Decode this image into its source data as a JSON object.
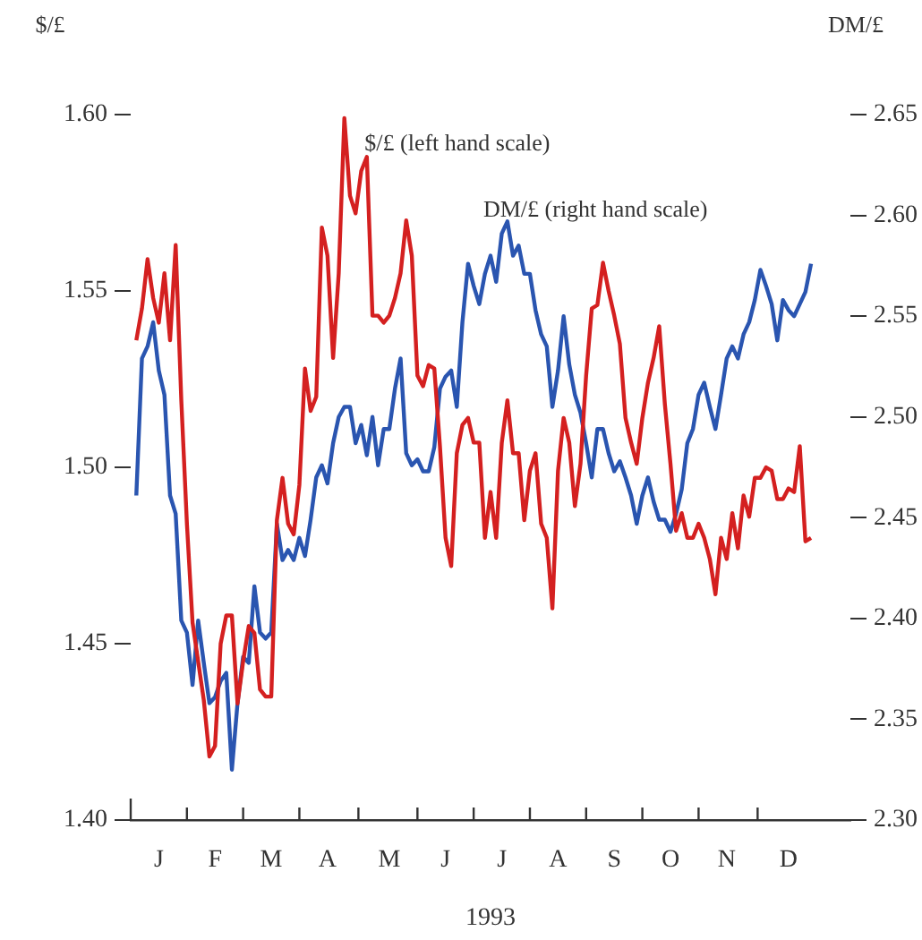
{
  "chart_data": {
    "type": "line",
    "ylabel": "$/£",
    "y2label": "DM/£",
    "xlabel": "1993",
    "categories": [
      null,
      null,
      null,
      null,
      null,
      "J",
      null,
      null,
      null,
      null,
      null,
      null,
      null,
      null,
      null,
      "F",
      null,
      null,
      null,
      null,
      null,
      null,
      null,
      null,
      null,
      "M",
      null,
      null,
      null,
      null,
      null,
      null,
      null,
      null,
      null,
      "A",
      null,
      null,
      null,
      null,
      null,
      null,
      null,
      null,
      null,
      null,
      "M",
      null,
      null,
      null,
      null,
      null,
      null,
      null,
      null,
      null,
      "J",
      null,
      null,
      null,
      null,
      null,
      null,
      null,
      null,
      null,
      "J",
      null,
      null,
      null,
      null,
      null,
      null,
      null,
      null,
      null,
      "A",
      null,
      null,
      null,
      null,
      null,
      null,
      null,
      null,
      null,
      "S",
      null,
      null,
      null,
      null,
      null,
      null,
      null,
      null,
      null,
      "O",
      null,
      null,
      null,
      null,
      null,
      null,
      null,
      null,
      null,
      "N",
      null,
      null,
      null,
      null,
      null,
      null,
      null,
      null,
      null,
      null,
      "D",
      null,
      null,
      null,
      null,
      null,
      null,
      null,
      null,
      null,
      null,
      null
    ],
    "ylim": [
      1.4,
      1.6
    ],
    "yticks": [
      {
        "value": 1.4,
        "label": "1.40"
      },
      1.45,
      {
        "value": 1.5,
        "label": "1.50"
      },
      1.55,
      {
        "value": 1.6,
        "label": "1.60"
      }
    ],
    "y2lim": [
      2.3,
      2.65
    ],
    "y2ticks": [
      {
        "value": 2.3,
        "label": "2.30"
      },
      2.35,
      {
        "value": 2.4,
        "label": "2.40"
      },
      2.45,
      {
        "value": 2.5,
        "label": "2.50"
      },
      2.55,
      {
        "value": 2.6,
        "label": "2.60"
      },
      2.65
    ],
    "grid": false,
    "legend": false,
    "series": [
      {
        "name": "$/£ (left hand scale)",
        "color": "#d42020",
        "axis": "y",
        "values": [
          null,
          1.536,
          1.545,
          1.559,
          1.548,
          1.541,
          1.555,
          1.536,
          1.563,
          1.519,
          1.484,
          1.456,
          1.445,
          1.434,
          1.418,
          1.421,
          1.45,
          1.458,
          1.458,
          1.433,
          1.445,
          1.455,
          1.453,
          1.437,
          1.435,
          1.435,
          1.485,
          1.497,
          1.484,
          1.481,
          1.495,
          1.528,
          1.516,
          1.52,
          1.568,
          1.56,
          1.531,
          1.555,
          1.599,
          1.577,
          1.572,
          1.584,
          1.588,
          1.543,
          1.543,
          1.541,
          1.543,
          1.548,
          1.555,
          1.57,
          1.56,
          1.526,
          1.523,
          1.529,
          1.528,
          1.506,
          1.48,
          1.472,
          1.504,
          1.512,
          1.514,
          1.507,
          1.507,
          1.48,
          1.493,
          1.48,
          1.507,
          1.519,
          1.504,
          1.504,
          1.485,
          1.499,
          1.504,
          1.484,
          1.48,
          1.46,
          1.499,
          1.514,
          1.507,
          1.489,
          1.501,
          1.526,
          1.545,
          1.546,
          1.558,
          1.55,
          1.543,
          1.535,
          1.514,
          1.507,
          1.501,
          1.514,
          1.524,
          1.531,
          1.54,
          1.518,
          1.501,
          1.482,
          1.487,
          1.48,
          1.48,
          1.484,
          1.48,
          1.474,
          1.464,
          1.48,
          1.474,
          1.487,
          1.477,
          1.492,
          1.486,
          1.497,
          1.497,
          1.5,
          1.499,
          1.491,
          1.491,
          1.494,
          1.493,
          1.506,
          1.479,
          1.48,
          null,
          null,
          null,
          null,
          null,
          null,
          null
        ]
      },
      {
        "name": "DM/£ (right hand scale)",
        "color": "#2a55b0",
        "axis": "y2",
        "values": [
          null,
          2.461,
          2.529,
          2.535,
          2.547,
          2.523,
          2.511,
          2.461,
          2.452,
          2.399,
          2.393,
          2.367,
          2.399,
          2.378,
          2.358,
          2.361,
          2.369,
          2.373,
          2.325,
          2.358,
          2.381,
          2.378,
          2.416,
          2.393,
          2.39,
          2.393,
          2.447,
          2.429,
          2.434,
          2.429,
          2.44,
          2.431,
          2.449,
          2.47,
          2.476,
          2.467,
          2.487,
          2.5,
          2.505,
          2.505,
          2.487,
          2.496,
          2.481,
          2.5,
          2.476,
          2.494,
          2.494,
          2.514,
          2.529,
          2.482,
          2.476,
          2.479,
          2.473,
          2.473,
          2.485,
          2.514,
          2.52,
          2.523,
          2.505,
          2.547,
          2.576,
          2.565,
          2.556,
          2.571,
          2.58,
          2.567,
          2.591,
          2.597,
          2.58,
          2.585,
          2.571,
          2.571,
          2.553,
          2.541,
          2.535,
          2.505,
          2.523,
          2.55,
          2.526,
          2.511,
          2.502,
          2.487,
          2.47,
          2.494,
          2.494,
          2.482,
          2.473,
          2.478,
          2.47,
          2.461,
          2.447,
          2.461,
          2.47,
          2.458,
          2.449,
          2.449,
          2.443,
          2.452,
          2.464,
          2.487,
          2.494,
          2.511,
          2.517,
          2.505,
          2.494,
          2.511,
          2.529,
          2.535,
          2.529,
          2.541,
          2.547,
          2.558,
          2.573,
          2.565,
          2.556,
          2.538,
          2.558,
          2.553,
          2.55,
          2.556,
          2.562,
          2.576,
          null,
          null,
          null,
          null,
          null,
          null,
          null
        ]
      }
    ]
  }
}
